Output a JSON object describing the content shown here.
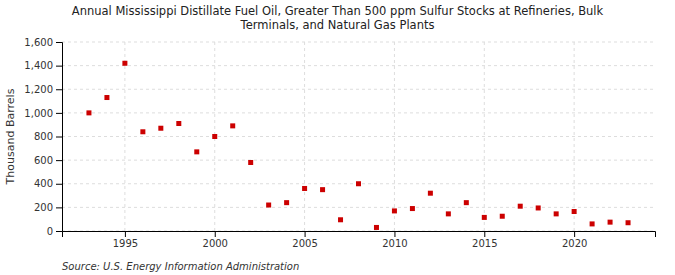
{
  "chart_data": {
    "type": "scatter",
    "title": "Annual Mississippi Distillate Fuel Oil, Greater Than 500 ppm Sulfur Stocks at Refineries, Bulk\nTerminals, and Natural Gas Plants",
    "y_label": "Thousand Barrels",
    "annotations": [
      "Source: U.S. Energy Information Administration"
    ],
    "x": [
      1993,
      1994,
      1995,
      1996,
      1997,
      1998,
      1999,
      2000,
      2001,
      2002,
      2003,
      2004,
      2005,
      2006,
      2007,
      2008,
      2009,
      2010,
      2011,
      2012,
      2013,
      2014,
      2015,
      2016,
      2017,
      2018,
      2019,
      2020,
      2021,
      2022,
      2023
    ],
    "values": [
      1000,
      1130,
      1420,
      840,
      870,
      910,
      670,
      800,
      890,
      580,
      220,
      240,
      360,
      350,
      95,
      400,
      30,
      170,
      190,
      320,
      145,
      240,
      115,
      125,
      210,
      195,
      145,
      165,
      60,
      75,
      70
    ],
    "color": "#cc0000",
    "marker": "square",
    "xlim": [
      1991.5,
      2024.5
    ],
    "xticks": [
      1995,
      2000,
      2005,
      2010,
      2015,
      2020
    ],
    "ylim": [
      0,
      1600
    ],
    "yticks": [
      0,
      200,
      400,
      600,
      800,
      {
        "value": 1000,
        "label": "1,000"
      },
      {
        "value": 1200,
        "label": "1,200"
      },
      {
        "value": 1400,
        "label": "1,400"
      },
      {
        "value": 1600,
        "label": "1,600"
      }
    ],
    "grid": true
  }
}
